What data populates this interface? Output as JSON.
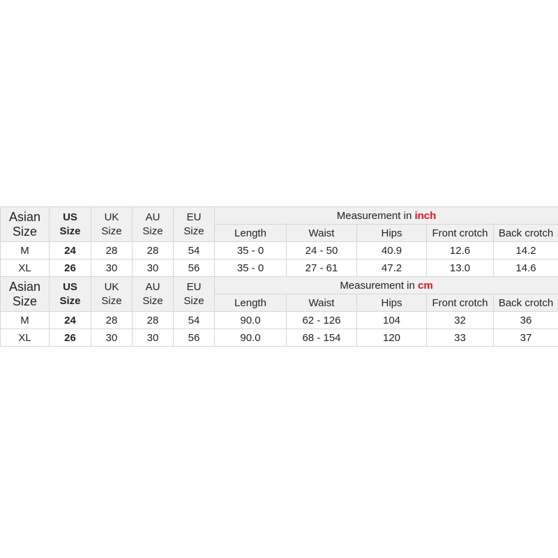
{
  "accent_color": "#e8141b",
  "size_headers": [
    {
      "line1": "Asian",
      "line2": "Size"
    },
    {
      "line1": "US",
      "line2": "Size"
    },
    {
      "line1": "UK",
      "line2": "Size"
    },
    {
      "line1": "AU",
      "line2": "Size"
    },
    {
      "line1": "EU",
      "line2": "Size"
    }
  ],
  "measurement_columns": [
    "Length",
    "Waist",
    "Hips",
    "Front crotch",
    "Back crotch"
  ],
  "tables": [
    {
      "title_prefix": "Measurement in ",
      "unit": "inch",
      "rows": [
        [
          "M",
          "24",
          "28",
          "28",
          "54",
          "35  - 0",
          "24  - 50",
          "40.9",
          "12.6",
          "14.2"
        ],
        [
          "XL",
          "26",
          "30",
          "30",
          "56",
          "35  - 0",
          "27  - 61",
          "47.2",
          "13.0",
          "14.6"
        ]
      ]
    },
    {
      "title_prefix": "Measurement in ",
      "unit": "cm",
      "rows": [
        [
          "M",
          "24",
          "28",
          "28",
          "54",
          "90.0",
          "62  - 126",
          "104",
          "32",
          "36"
        ],
        [
          "XL",
          "26",
          "30",
          "30",
          "56",
          "90.0",
          "68  - 154",
          "120",
          "33",
          "37"
        ]
      ]
    }
  ]
}
